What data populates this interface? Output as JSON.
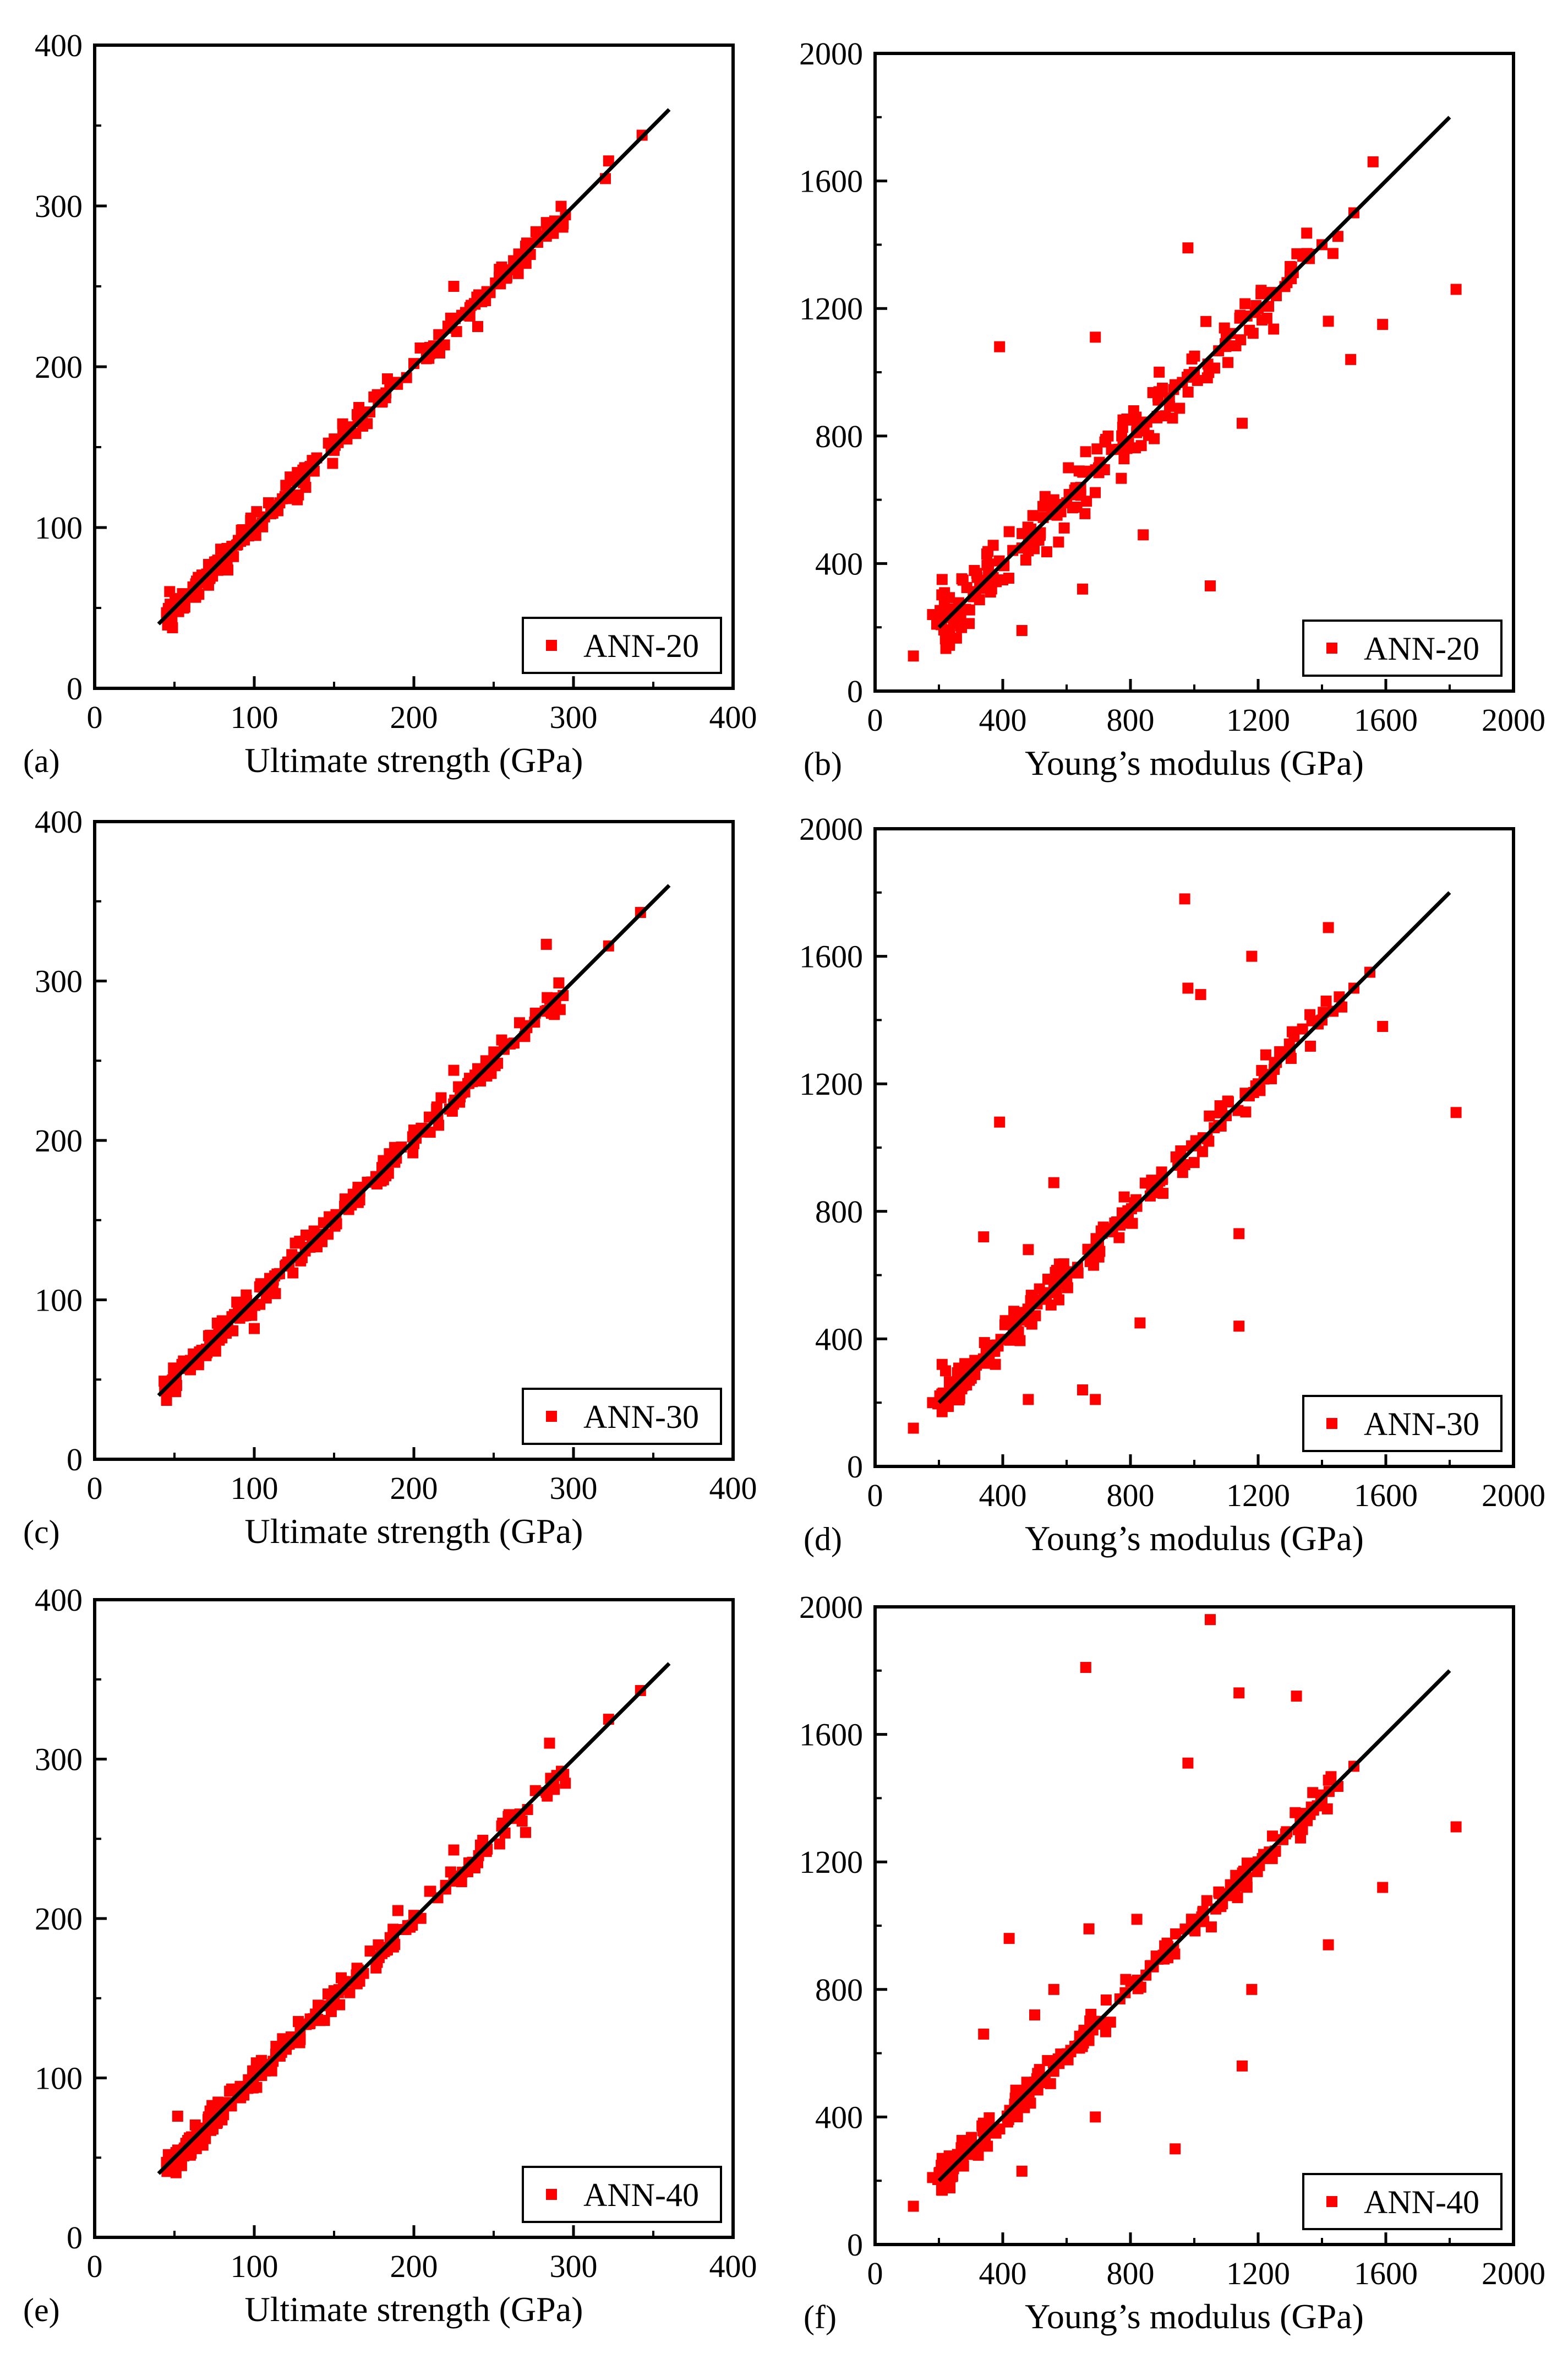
{
  "marker_color": "#ff0000",
  "line_color": "#000000",
  "chart_data": [
    {
      "type": "scatter",
      "panel_label": "(a)",
      "xlabel": "Ultimate strength (GPa)",
      "ylabel": "",
      "xlim": [
        0,
        400
      ],
      "ylim": [
        0,
        400
      ],
      "xticks": [
        "0",
        "100",
        "200",
        "300",
        "400"
      ],
      "yticks": [
        "0",
        "100",
        "200",
        "300",
        "400"
      ],
      "legend": "ANN-20",
      "fit_line": [
        [
          40,
          40
        ],
        [
          360,
          360
        ]
      ],
      "noise": 4,
      "seed": 11,
      "points": [
        [
          45,
          47
        ],
        [
          60,
          58
        ],
        [
          75,
          77
        ],
        [
          90,
          92
        ],
        [
          105,
          103
        ],
        [
          120,
          118
        ],
        [
          135,
          138
        ],
        [
          150,
          148
        ],
        [
          165,
          167
        ],
        [
          180,
          178
        ],
        [
          200,
          202
        ],
        [
          210,
          212
        ],
        [
          225,
          250
        ],
        [
          230,
          232
        ],
        [
          240,
          225
        ],
        [
          255,
          262
        ],
        [
          270,
          275
        ],
        [
          285,
          288
        ],
        [
          320,
          317
        ],
        [
          322,
          328
        ],
        [
          343,
          344
        ]
      ]
    },
    {
      "type": "scatter",
      "panel_label": "(b)",
      "xlabel": "Young’s modulus (GPa)",
      "ylabel": "",
      "xlim": [
        0,
        2000
      ],
      "ylim": [
        0,
        2000
      ],
      "xticks": [
        "0",
        "400",
        "800",
        "1200",
        "1600",
        "2000"
      ],
      "yticks": [
        "0",
        "400",
        "800",
        "1200",
        "1600",
        "2000"
      ],
      "legend": "ANN-20",
      "fit_line": [
        [
          200,
          200
        ],
        [
          1800,
          1800
        ]
      ],
      "noise": 45,
      "seed": 23,
      "points": [
        [
          120,
          110
        ],
        [
          180,
          240
        ],
        [
          210,
          350
        ],
        [
          350,
          430
        ],
        [
          390,
          1080
        ],
        [
          420,
          500
        ],
        [
          460,
          190
        ],
        [
          480,
          440
        ],
        [
          560,
          600
        ],
        [
          650,
          320
        ],
        [
          690,
          1110
        ],
        [
          700,
          700
        ],
        [
          730,
          800
        ],
        [
          800,
          850
        ],
        [
          840,
          490
        ],
        [
          900,
          950
        ],
        [
          980,
          1390
        ],
        [
          1000,
          1000
        ],
        [
          1050,
          330
        ],
        [
          1100,
          1120
        ],
        [
          1150,
          840
        ],
        [
          1200,
          1200
        ],
        [
          1300,
          1300
        ],
        [
          1400,
          1400
        ],
        [
          1420,
          1160
        ],
        [
          1490,
          1040
        ],
        [
          1500,
          1500
        ],
        [
          1560,
          1660
        ],
        [
          1590,
          1150
        ],
        [
          1820,
          1260
        ]
      ]
    },
    {
      "type": "scatter",
      "panel_label": "(c)",
      "xlabel": "Ultimate strength (GPa)",
      "ylabel": "",
      "xlim": [
        0,
        400
      ],
      "ylim": [
        0,
        400
      ],
      "xticks": [
        "0",
        "100",
        "200",
        "300",
        "400"
      ],
      "yticks": [
        "0",
        "100",
        "200",
        "300",
        "400"
      ],
      "legend": "ANN-30",
      "fit_line": [
        [
          40,
          40
        ],
        [
          360,
          360
        ]
      ],
      "noise": 4,
      "seed": 37,
      "points": [
        [
          45,
          47
        ],
        [
          60,
          62
        ],
        [
          75,
          73
        ],
        [
          90,
          92
        ],
        [
          100,
          82
        ],
        [
          105,
          108
        ],
        [
          120,
          122
        ],
        [
          135,
          133
        ],
        [
          150,
          152
        ],
        [
          165,
          163
        ],
        [
          180,
          183
        ],
        [
          200,
          198
        ],
        [
          215,
          216
        ],
        [
          225,
          244
        ],
        [
          240,
          245
        ],
        [
          255,
          263
        ],
        [
          270,
          272
        ],
        [
          283,
          323
        ],
        [
          288,
          279
        ],
        [
          322,
          322
        ],
        [
          342,
          343
        ]
      ]
    },
    {
      "type": "scatter",
      "panel_label": "(d)",
      "xlabel": "Young’s modulus (GPa)",
      "ylabel": "",
      "xlim": [
        0,
        2000
      ],
      "ylim": [
        0,
        2000
      ],
      "xticks": [
        "0",
        "400",
        "800",
        "1200",
        "1600",
        "2000"
      ],
      "yticks": [
        "0",
        "400",
        "800",
        "1200",
        "1600",
        "2000"
      ],
      "legend": "ANN-30",
      "fit_line": [
        [
          200,
          200
        ],
        [
          1800,
          1800
        ]
      ],
      "noise": 25,
      "seed": 41,
      "points": [
        [
          120,
          120
        ],
        [
          180,
          200
        ],
        [
          210,
          320
        ],
        [
          340,
          720
        ],
        [
          390,
          1080
        ],
        [
          480,
          210
        ],
        [
          480,
          680
        ],
        [
          560,
          890
        ],
        [
          650,
          240
        ],
        [
          690,
          210
        ],
        [
          700,
          700
        ],
        [
          830,
          450
        ],
        [
          900,
          900
        ],
        [
          970,
          1780
        ],
        [
          980,
          1500
        ],
        [
          1020,
          1480
        ],
        [
          1100,
          1100
        ],
        [
          1140,
          730
        ],
        [
          1140,
          440
        ],
        [
          1180,
          1600
        ],
        [
          1200,
          1200
        ],
        [
          1300,
          1300
        ],
        [
          1400,
          1400
        ],
        [
          1420,
          1690
        ],
        [
          1500,
          1500
        ],
        [
          1550,
          1550
        ],
        [
          1590,
          1380
        ],
        [
          1820,
          1110
        ]
      ]
    },
    {
      "type": "scatter",
      "panel_label": "(e)",
      "xlabel": "Ultimate strength (GPa)",
      "ylabel": "",
      "xlim": [
        0,
        400
      ],
      "ylim": [
        0,
        400
      ],
      "xticks": [
        "0",
        "100",
        "200",
        "300",
        "400"
      ],
      "yticks": [
        "0",
        "100",
        "200",
        "300",
        "400"
      ],
      "legend": "ANN-40",
      "fit_line": [
        [
          40,
          40
        ],
        [
          360,
          360
        ]
      ],
      "noise": 4,
      "seed": 53,
      "points": [
        [
          45,
          47
        ],
        [
          52,
          76
        ],
        [
          60,
          62
        ],
        [
          75,
          77
        ],
        [
          90,
          88
        ],
        [
          105,
          107
        ],
        [
          120,
          118
        ],
        [
          135,
          137
        ],
        [
          150,
          148
        ],
        [
          165,
          167
        ],
        [
          180,
          178
        ],
        [
          190,
          205
        ],
        [
          200,
          202
        ],
        [
          215,
          213
        ],
        [
          225,
          243
        ],
        [
          240,
          235
        ],
        [
          255,
          258
        ],
        [
          270,
          254
        ],
        [
          285,
          310
        ],
        [
          288,
          281
        ],
        [
          322,
          325
        ],
        [
          342,
          343
        ]
      ]
    },
    {
      "type": "scatter",
      "panel_label": "(f)",
      "xlabel": "Young’s modulus (GPa)",
      "ylabel": "",
      "xlim": [
        0,
        2000
      ],
      "ylim": [
        0,
        2000
      ],
      "xticks": [
        "0",
        "400",
        "800",
        "1200",
        "1600",
        "2000"
      ],
      "yticks": [
        "0",
        "400",
        "800",
        "1200",
        "1600",
        "2000"
      ],
      "legend": "ANN-40",
      "fit_line": [
        [
          200,
          200
        ],
        [
          1800,
          1800
        ]
      ],
      "noise": 22,
      "seed": 67,
      "points": [
        [
          120,
          120
        ],
        [
          180,
          210
        ],
        [
          210,
          270
        ],
        [
          340,
          660
        ],
        [
          420,
          960
        ],
        [
          460,
          230
        ],
        [
          500,
          720
        ],
        [
          560,
          800
        ],
        [
          660,
          1810
        ],
        [
          670,
          990
        ],
        [
          690,
          400
        ],
        [
          700,
          700
        ],
        [
          820,
          1020
        ],
        [
          900,
          900
        ],
        [
          940,
          300
        ],
        [
          980,
          1510
        ],
        [
          1000,
          1000
        ],
        [
          1050,
          1960
        ],
        [
          1100,
          1100
        ],
        [
          1140,
          1730
        ],
        [
          1150,
          560
        ],
        [
          1180,
          800
        ],
        [
          1200,
          1200
        ],
        [
          1320,
          1720
        ],
        [
          1400,
          1400
        ],
        [
          1420,
          940
        ],
        [
          1500,
          1500
        ],
        [
          1590,
          1120
        ],
        [
          1820,
          1310
        ]
      ]
    }
  ]
}
